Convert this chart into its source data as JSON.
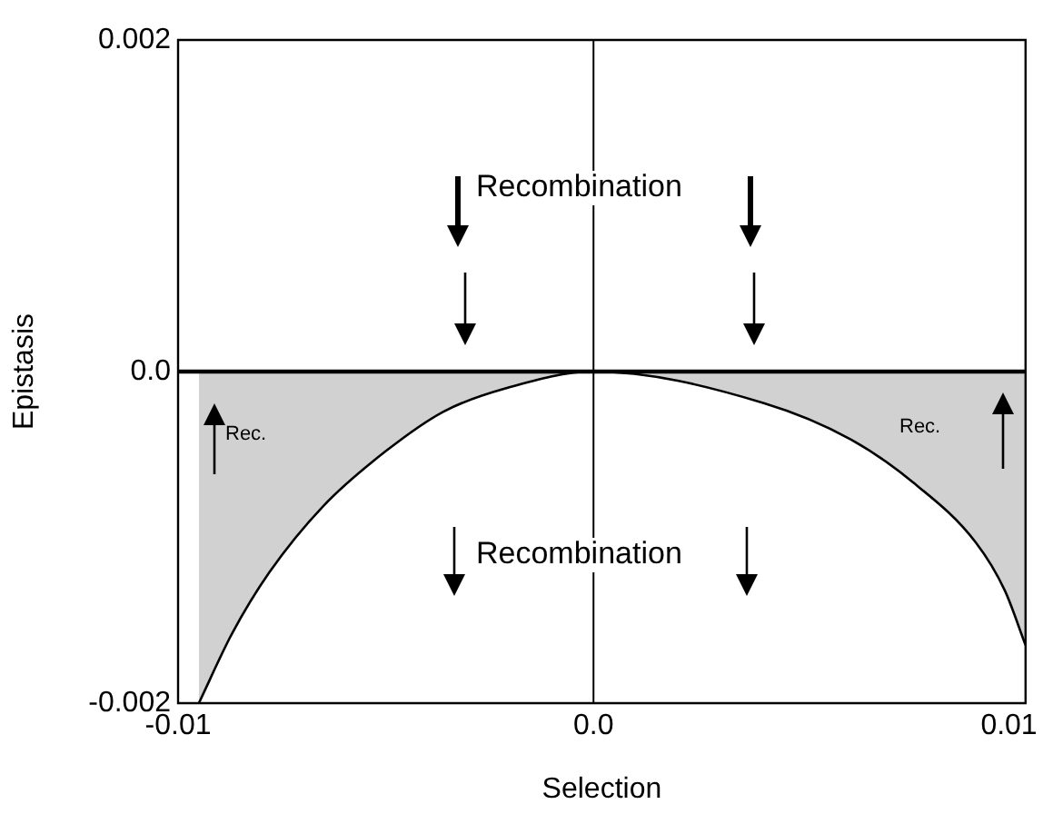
{
  "chart_data": {
    "type": "area",
    "xlabel": "Selection",
    "ylabel": "Epistasis",
    "x": [
      -0.0095,
      -0.0087,
      -0.0078,
      -0.0065,
      -0.005,
      -0.0036,
      -0.0021,
      0,
      0.0041,
      0.0062,
      0.0077,
      0.0092,
      0.0099,
      0.0104
    ],
    "series": [
      {
        "color": "#000000",
        "values": [
          -0.002,
          -0.00158,
          -0.00121,
          -0.00081,
          -0.00048,
          -0.00024,
          -0.0001,
          0,
          -0.00019,
          -0.00041,
          -0.00067,
          -0.00103,
          -0.00132,
          -0.00165
        ]
      }
    ],
    "xlim": [
      -0.01,
      0.0104
    ],
    "ylim": [
      -0.002,
      0.002
    ],
    "xticks": [
      -0.01,
      {
        "value": 0,
        "label": "0.0"
      },
      0.01
    ],
    "yticks": [
      -0.002,
      {
        "value": 0,
        "label": "0.0"
      },
      0.002
    ],
    "grid": false,
    "legend": false,
    "ref_lines": [
      {
        "axis": "y",
        "value": 0
      },
      {
        "axis": "x",
        "value": 0
      }
    ],
    "annotations": [
      "Recombination",
      "Recombination",
      "Rec.",
      "Rec."
    ]
  }
}
